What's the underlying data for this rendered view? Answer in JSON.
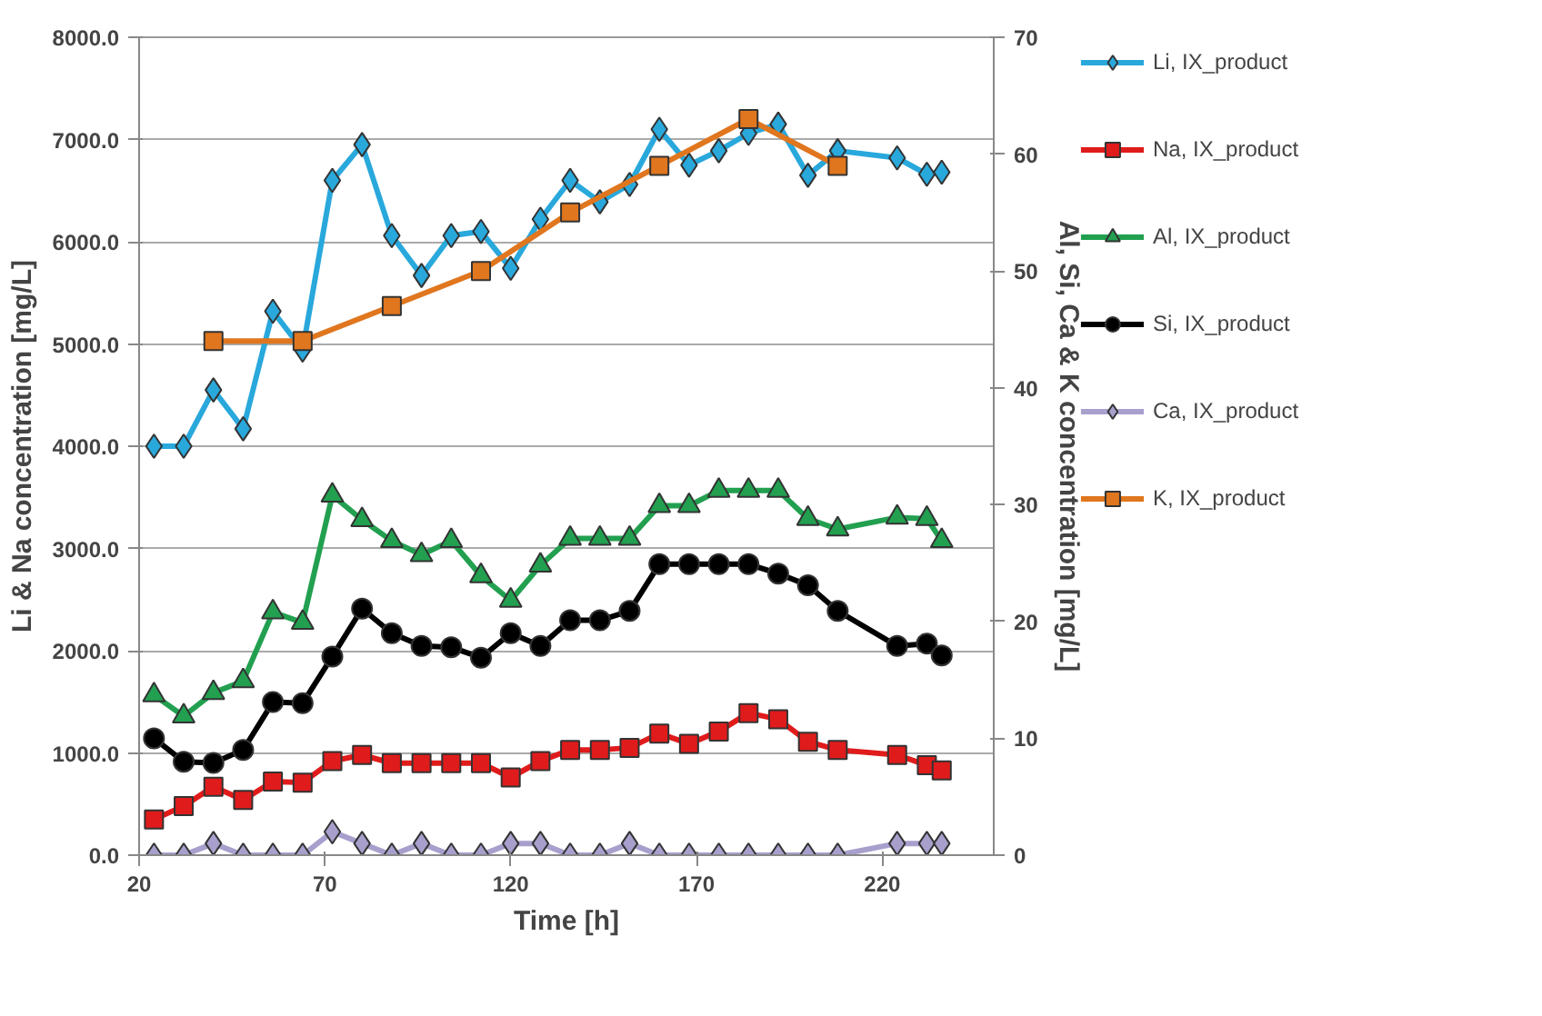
{
  "chart_data": {
    "type": "line",
    "xlabel": "Time [h]",
    "ylabel": "Li & Na concentration [mg/L]",
    "y2label": "Al, Si, Ca & K concentration [mg/L]",
    "x": [
      24,
      32,
      40,
      48,
      56,
      64,
      72,
      80,
      88,
      96,
      104,
      112,
      120,
      128,
      136,
      144,
      152,
      160,
      168,
      176,
      184,
      192,
      200,
      208,
      224,
      232,
      236
    ],
    "xlim": [
      20,
      250
    ],
    "xticks": [
      20,
      70,
      120,
      170,
      220
    ],
    "ylim": [
      0,
      8000
    ],
    "yticks": [
      {
        "value": 0,
        "label": "0.0"
      },
      {
        "value": 1000,
        "label": "1000.0"
      },
      {
        "value": 2000,
        "label": "2000.0"
      },
      {
        "value": 3000,
        "label": "3000.0"
      },
      {
        "value": 4000,
        "label": "4000.0"
      },
      {
        "value": 5000,
        "label": "5000.0"
      },
      {
        "value": 6000,
        "label": "6000.0"
      },
      {
        "value": 7000,
        "label": "7000.0"
      },
      {
        "value": 8000,
        "label": "8000.0"
      }
    ],
    "y2lim": [
      0,
      70
    ],
    "y2ticks": [
      0,
      10,
      20,
      30,
      40,
      50,
      60,
      70
    ],
    "grid": "y",
    "legend": "right",
    "line_style": "solid",
    "series": [
      {
        "name": "Li, IX_product",
        "color": "#29a8dc",
        "marker": "diamond",
        "values": [
          4000,
          4000,
          4550,
          4170,
          5320,
          4940,
          6600,
          6950,
          6060,
          5670,
          6060,
          6100,
          5740,
          6220,
          6600,
          6390,
          6560,
          7100,
          6750,
          6890,
          7060,
          7150,
          6650,
          6890,
          6820,
          6660,
          6680
        ]
      },
      {
        "name": "Na, IX_product",
        "color": "#e01b1b",
        "marker": "square",
        "values": [
          350,
          480,
          670,
          540,
          720,
          710,
          920,
          980,
          900,
          900,
          900,
          900,
          760,
          920,
          1030,
          1030,
          1050,
          1190,
          1090,
          1210,
          1390,
          1330,
          1110,
          1030,
          980,
          880,
          830
        ]
      },
      {
        "name": "Al, IX_product",
        "color": "#22a050",
        "marker": "triangle",
        "axis": "y2",
        "values": [
          13.7,
          11.9,
          13.9,
          14.9,
          20.8,
          19.9,
          30.8,
          28.7,
          26.9,
          25.7,
          26.9,
          23.9,
          21.8,
          24.8,
          27.1,
          27.1,
          27.1,
          29.9,
          29.9,
          31.2,
          31.2,
          31.2,
          28.8,
          27.9,
          28.9,
          28.8,
          26.9
        ]
      },
      {
        "name": "Si, IX_product",
        "color": "#000000",
        "marker": "circle",
        "axis": "y2",
        "values": [
          10.0,
          8.0,
          7.9,
          9.0,
          13.1,
          13.0,
          17.0,
          21.1,
          19.0,
          17.9,
          17.8,
          16.9,
          19.0,
          17.9,
          20.1,
          20.1,
          20.9,
          24.9,
          24.9,
          24.9,
          24.9,
          24.1,
          23.1,
          20.9,
          17.9,
          18.1,
          17.1
        ]
      },
      {
        "name": "Ca, IX_product",
        "color": "#a89fcc",
        "marker": "diamond",
        "axis": "y2",
        "values": [
          0,
          0,
          1,
          0,
          0,
          0,
          2,
          1,
          0,
          1,
          0,
          0,
          1,
          1,
          0,
          0,
          1,
          0,
          0,
          0,
          0,
          0,
          0,
          0,
          1,
          1,
          1
        ]
      },
      {
        "name": "K, IX_product",
        "color": "#e0761e",
        "marker": "square",
        "axis": "y2",
        "x": [
          40,
          64,
          88,
          112,
          136,
          160,
          184,
          208
        ],
        "values": [
          44,
          44,
          47,
          50,
          55,
          59,
          63,
          59
        ]
      }
    ]
  }
}
